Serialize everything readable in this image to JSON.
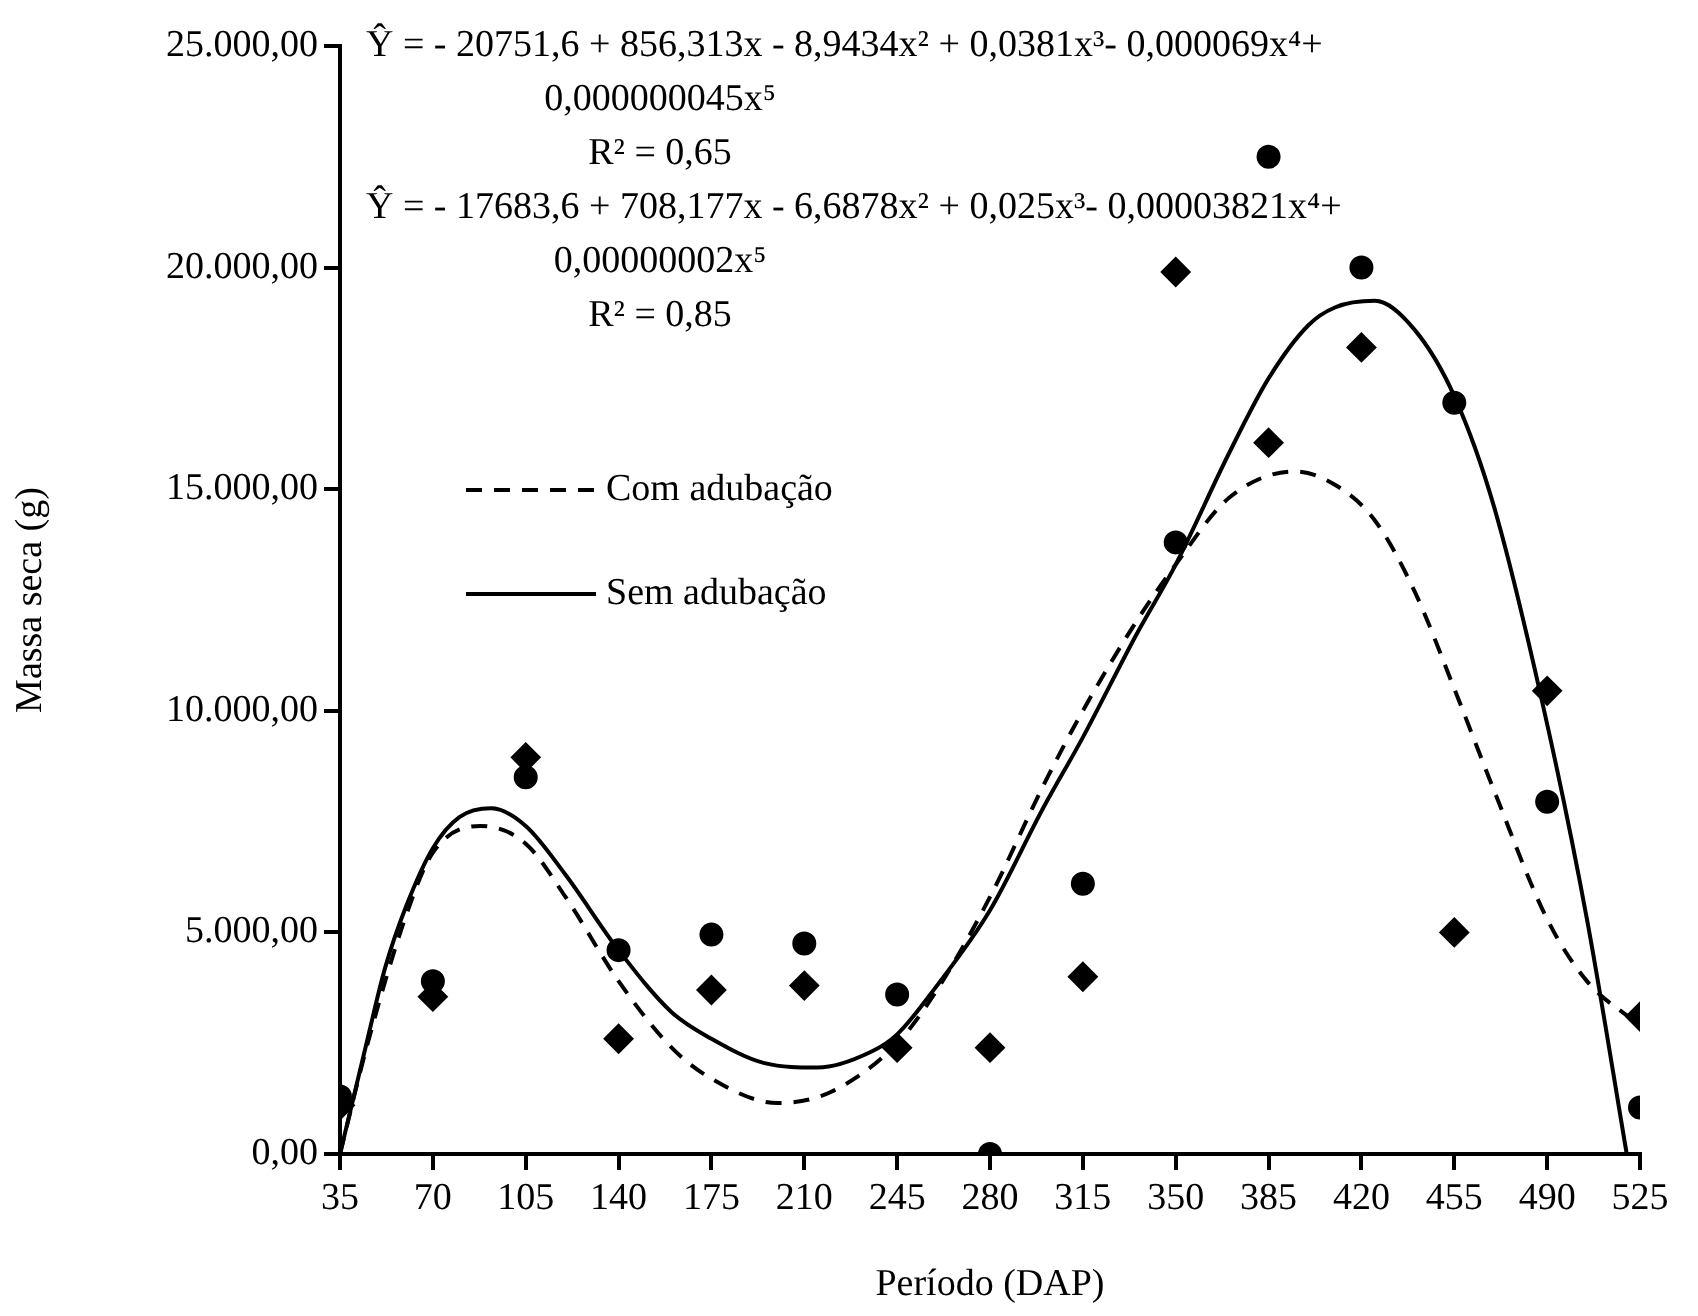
{
  "chart_data": {
    "type": "scatter",
    "xlabel": "Período (DAP)",
    "ylabel": "Massa seca (g)",
    "xlim": [
      35,
      525
    ],
    "xticks": [
      35,
      70,
      105,
      140,
      175,
      210,
      245,
      280,
      315,
      350,
      385,
      420,
      455,
      490,
      525
    ],
    "ylim": [
      0,
      25000
    ],
    "yticks": [
      {
        "value": 0,
        "label": "0,00"
      },
      {
        "value": 5000,
        "label": "5.000,00"
      },
      {
        "value": 10000,
        "label": "10.000,00"
      },
      {
        "value": 15000,
        "label": "15.000,00"
      },
      {
        "value": 20000,
        "label": "20.000,00"
      },
      {
        "value": 25000,
        "label": "25.000,00"
      }
    ],
    "grid": false,
    "legend": "left",
    "annotations": [
      "Ŷ = - 20751,6 + 856,313x - 8,9434x² + 0,0381x³- 0,000069x⁴+ 0,000000045x⁵",
      "R² = 0,65",
      "Ŷ = - 17683,6 + 708,177x - 6,6878x² + 0,025x³- 0,00003821x⁴+ 0,00000002x⁵",
      "R² = 0,85"
    ],
    "series": [
      {
        "type": "scatter",
        "marker": "circle",
        "color": "#000000",
        "x": [
          35,
          70,
          105,
          140,
          175,
          210,
          245,
          280,
          315,
          350,
          385,
          420,
          455,
          490,
          525
        ],
        "values": [
          1300,
          3900,
          8500,
          4600,
          4950,
          4750,
          3600,
          0,
          6100,
          13800,
          22500,
          20000,
          16950,
          7950,
          1050
        ]
      },
      {
        "type": "scatter",
        "marker": "diamond",
        "color": "#000000",
        "x": [
          35,
          70,
          105,
          140,
          175,
          210,
          245,
          280,
          315,
          350,
          385,
          420,
          455,
          490,
          525
        ],
        "values": [
          1100,
          3550,
          8950,
          2600,
          3700,
          3800,
          2400,
          2400,
          4000,
          19900,
          16050,
          18200,
          5000,
          10450,
          3100
        ]
      },
      {
        "type": "line",
        "name": "Com adubação",
        "marker": "none",
        "line_style": "dashed",
        "color": "#000000",
        "x": [
          35,
          45,
          60,
          70,
          88,
          105,
          120,
          140,
          160,
          175,
          200,
          220,
          245,
          260,
          280,
          300,
          315,
          335,
          350,
          370,
          395,
          410,
          425,
          440,
          455,
          470,
          490,
          505,
          525
        ],
        "values": [
          0,
          2400,
          5400,
          6800,
          7400,
          7000,
          5800,
          3900,
          2400,
          1700,
          1150,
          1400,
          2500,
          3700,
          5800,
          8300,
          10000,
          12000,
          13300,
          14800,
          15400,
          15100,
          14300,
          12700,
          10500,
          8200,
          5300,
          3900,
          2900
        ]
      },
      {
        "type": "line",
        "name": "Sem adubação",
        "marker": "none",
        "line_style": "solid",
        "color": "#000000",
        "x": [
          35,
          45,
          52,
          60,
          70,
          80,
          92,
          105,
          120,
          140,
          160,
          175,
          195,
          215,
          235,
          245,
          260,
          280,
          300,
          315,
          335,
          350,
          370,
          385,
          400,
          410,
          425,
          440,
          455,
          470,
          490,
          505,
          520
        ],
        "values": [
          0,
          2500,
          4200,
          5600,
          6900,
          7600,
          7800,
          7400,
          6300,
          4600,
          3200,
          2600,
          2050,
          1950,
          2300,
          2700,
          3800,
          5500,
          7800,
          9400,
          11700,
          13300,
          15800,
          17500,
          18700,
          19100,
          19250,
          18600,
          17100,
          14600,
          9700,
          5300,
          0
        ]
      }
    ]
  }
}
